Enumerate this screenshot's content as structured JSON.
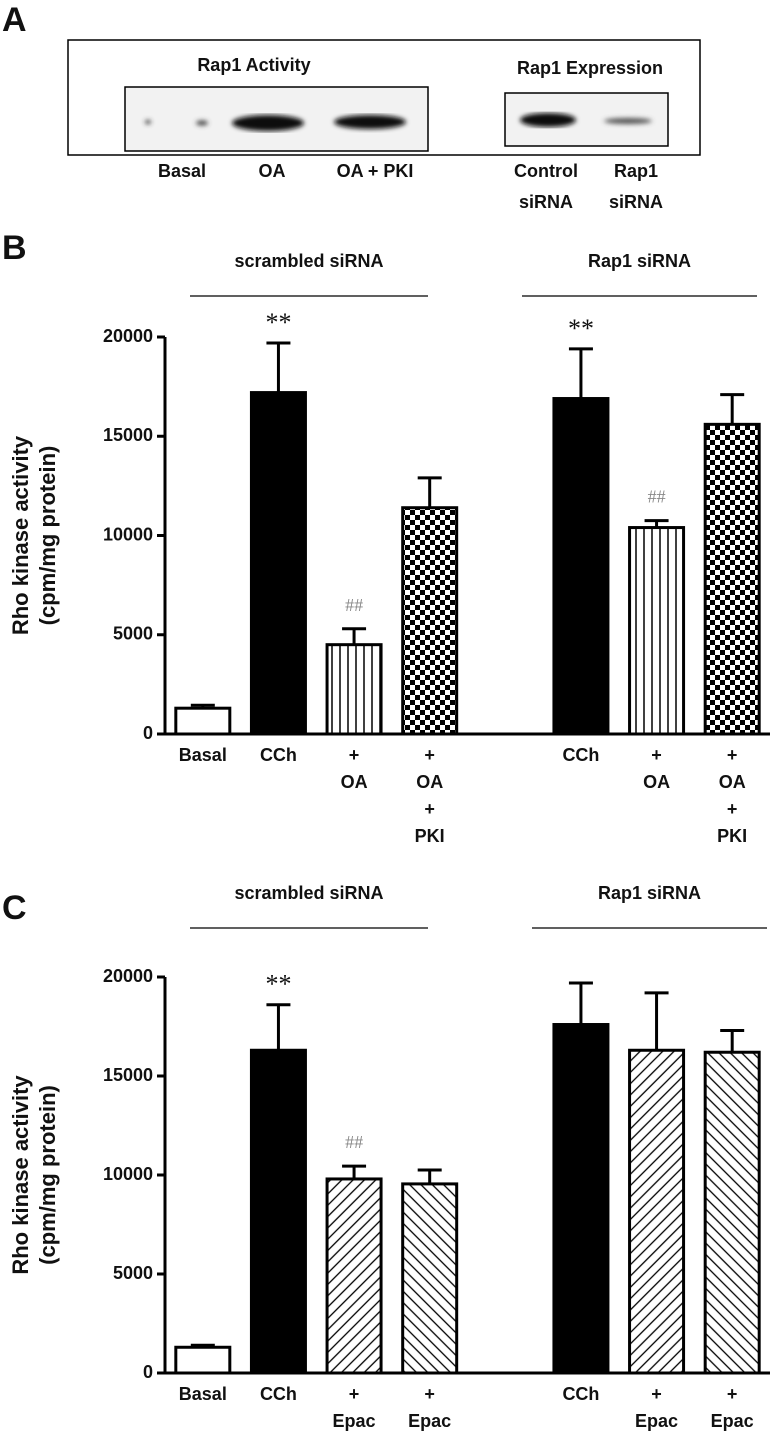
{
  "panel_a": {
    "letter": "A",
    "activity_title": "Rap1 Activity",
    "expression_title": "Rap1 Expression",
    "activity_lanes": [
      "Basal",
      "OA",
      "OA + PKI"
    ],
    "expression_lanes": [
      [
        "Control",
        "siRNA"
      ],
      [
        "Rap1",
        "siRNA"
      ]
    ]
  },
  "chart_data": [
    {
      "type": "bar",
      "letter": "B",
      "y_label": [
        "Rho kinase activity",
        "(cpm/mg protein)"
      ],
      "groups": [
        "scrambled siRNA",
        "Rap1 siRNA"
      ],
      "categories": [
        [
          "Basal"
        ],
        [
          "CCh"
        ],
        [
          "+",
          "OA"
        ],
        [
          "+",
          "OA",
          "+",
          "PKI"
        ],
        null,
        [
          "CCh"
        ],
        [
          "+",
          "OA"
        ],
        [
          "+",
          "OA",
          "+",
          "PKI"
        ]
      ],
      "values": [
        1300,
        17200,
        4500,
        11400,
        null,
        16900,
        10400,
        15600
      ],
      "errors": [
        150,
        2500,
        800,
        1500,
        null,
        2500,
        350,
        1500
      ],
      "annotations": [
        null,
        "**",
        "##",
        null,
        null,
        "**",
        "##",
        null
      ],
      "fills": [
        "white",
        "black",
        "vlines",
        "checker",
        null,
        "black",
        "vlines",
        "checker"
      ],
      "ylim": [
        0,
        20000
      ],
      "yticks": [
        0,
        5000,
        10000,
        15000,
        20000
      ]
    },
    {
      "type": "bar",
      "letter": "C",
      "y_label": [
        "Rho kinase activity",
        "(cpm/mg protein)"
      ],
      "groups": [
        "scrambled siRNA",
        "Rap1 siRNA"
      ],
      "categories": [
        [
          "Basal"
        ],
        [
          "CCh"
        ],
        [
          "+",
          "Epac"
        ],
        [
          "+",
          "Epac"
        ],
        null,
        [
          "CCh"
        ],
        [
          "+",
          "Epac"
        ],
        [
          "+",
          "Epac"
        ]
      ],
      "values": [
        1300,
        16300,
        9800,
        9550,
        null,
        17600,
        16300,
        16200
      ],
      "errors": [
        100,
        2300,
        650,
        700,
        null,
        2100,
        2900,
        1100
      ],
      "annotations": [
        null,
        "**",
        "##",
        null,
        null,
        null,
        null,
        null
      ],
      "fills": [
        "white",
        "black",
        "diag-r",
        "diag-l",
        null,
        "black",
        "diag-r",
        "diag-l"
      ],
      "ylim": [
        0,
        20000
      ],
      "yticks": [
        0,
        5000,
        10000,
        15000,
        20000
      ]
    }
  ]
}
